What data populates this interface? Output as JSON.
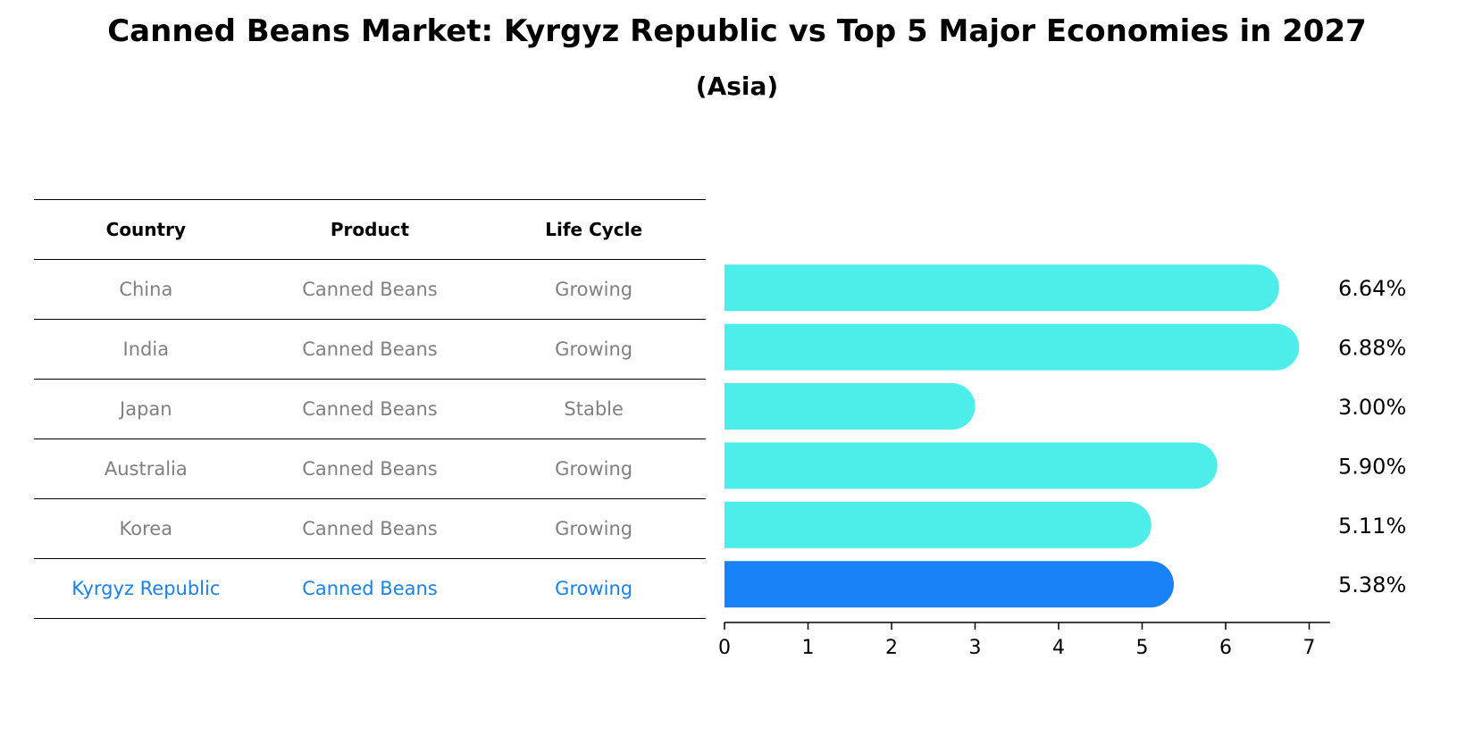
{
  "title": "Canned Beans Market: Kyrgyz Republic vs Top 5 Major Economies in 2027",
  "subtitle": "(Asia)",
  "table": {
    "headers": [
      "Country",
      "Product",
      "Life Cycle"
    ],
    "rows": [
      {
        "country": "China",
        "product": "Canned Beans",
        "life_cycle": "Growing"
      },
      {
        "country": "India",
        "product": "Canned Beans",
        "life_cycle": "Growing"
      },
      {
        "country": "Japan",
        "product": "Canned Beans",
        "life_cycle": "Stable"
      },
      {
        "country": "Australia",
        "product": "Canned Beans",
        "life_cycle": "Growing"
      },
      {
        "country": "Korea",
        "product": "Canned Beans",
        "life_cycle": "Growing"
      },
      {
        "country": "Kyrgyz Republic",
        "product": "Canned Beans",
        "life_cycle": "Growing"
      }
    ]
  },
  "colors": {
    "bar": "#4deeea",
    "highlight": "#1a82f7",
    "highlight_text": "#1a82e6",
    "muted_text": "#808080"
  },
  "chart_data": {
    "type": "bar",
    "orientation": "horizontal",
    "categories": [
      "China",
      "India",
      "Japan",
      "Australia",
      "Korea",
      "Kyrgyz Republic"
    ],
    "values": [
      6.64,
      6.88,
      3.0,
      5.9,
      5.11,
      5.38
    ],
    "value_labels": [
      "6.64%",
      "6.88%",
      "3.00%",
      "5.90%",
      "5.11%",
      "5.38%"
    ],
    "highlight_category": "Kyrgyz Republic",
    "xticks": [
      0,
      1,
      2,
      3,
      4,
      5,
      6,
      7
    ],
    "xlim": [
      0,
      7.25
    ],
    "grid": false
  }
}
